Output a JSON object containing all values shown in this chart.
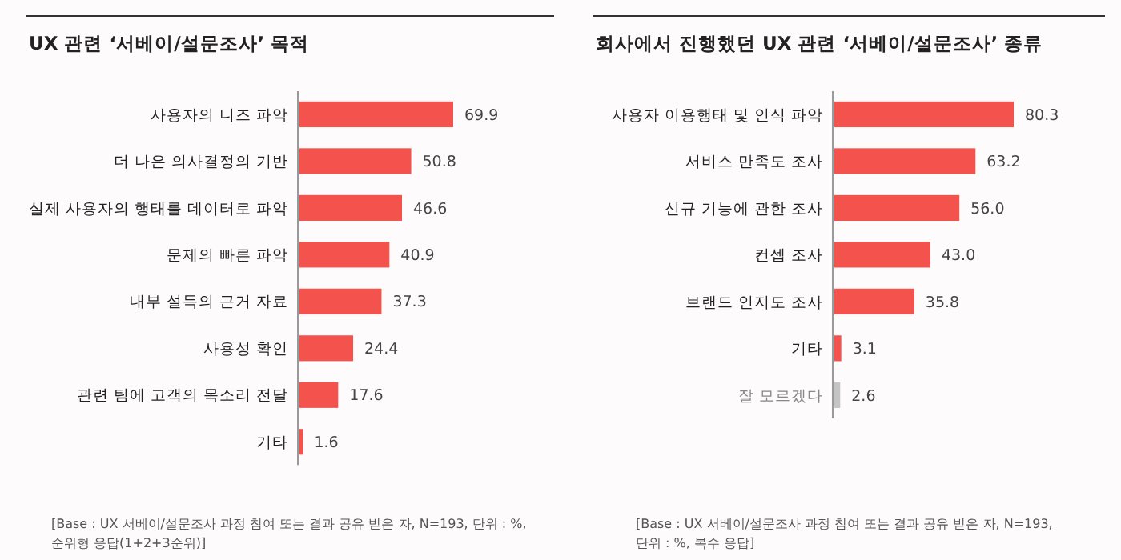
{
  "chart_data": [
    {
      "type": "bar",
      "orientation": "horizontal",
      "title": "UX 관련 ‘서베이/설문조사’ 목적",
      "categories": [
        "사용자의 니즈 파악",
        "더 나은 의사결정의 기반",
        "실제 사용자의 행태를 데이터로 파악",
        "문제의 빠른 파악",
        "내부 설득의 근거 자료",
        "사용성 확인",
        "관련 팀에 고객의 목소리 전달",
        "기타"
      ],
      "values": [
        69.9,
        50.8,
        46.6,
        40.9,
        37.3,
        24.4,
        17.6,
        1.6
      ],
      "color": "#f4524d",
      "data_labels": true,
      "annotations": [
        "[Base : UX 서베이/설문조사 과정 참여 또는 결과 공유 받은 자, N=193, 단위 : %, 순위형 응답(1+2+3순위)]"
      ]
    },
    {
      "type": "bar",
      "orientation": "horizontal",
      "title": "회사에서 진행했던 UX 관련 ‘서베이/설문조사’ 종류",
      "categories": [
        "사용자 이용행태 및 인식 파악",
        "서비스 만족도 조사",
        "신규 기능에 관한 조사",
        "컨셉 조사",
        "브랜드 인지도 조사",
        "기타",
        "잘 모르겠다"
      ],
      "values": [
        80.3,
        63.2,
        56.0,
        43.0,
        35.8,
        3.1,
        2.6
      ],
      "colors": [
        "#f4524d",
        "#f4524d",
        "#f4524d",
        "#f4524d",
        "#f4524d",
        "#f4524d",
        "#c4c4c4"
      ],
      "value_labels": [
        "80.3",
        "63.2",
        "56.0",
        "43.0",
        "35.8",
        "3.1",
        "2.6"
      ],
      "annotations": [
        "[Base : UX 서베이/설문조사 과정 참여 또는 결과 공유 받은 자, N=193, 단위 : %, 복수 응답]"
      ]
    }
  ]
}
